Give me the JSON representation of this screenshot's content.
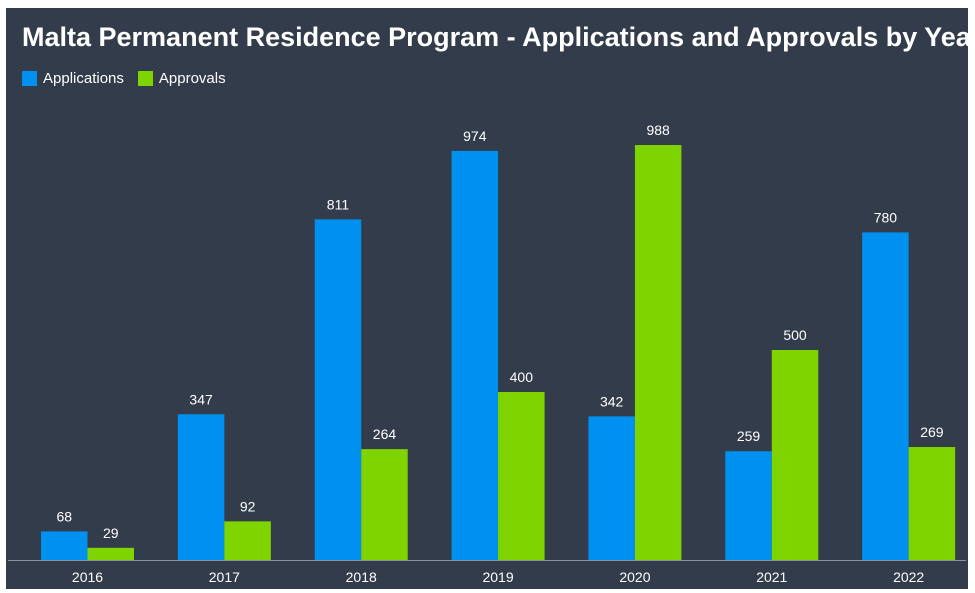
{
  "colors": {
    "background": "#323c4b",
    "applications": "#0090f0",
    "approvals": "#7fd400",
    "text": "#ffffff",
    "axis": "#8a949f"
  },
  "chart_data": {
    "type": "bar",
    "title": "Malta Permanent Residence Program - Applications and Approvals by Year",
    "xlabel": "",
    "ylabel": "",
    "ylim": [
      0,
      1000
    ],
    "grid": false,
    "legend_position": "top-left",
    "categories": [
      "2016",
      "2017",
      "2018",
      "2019",
      "2020",
      "2021",
      "2022"
    ],
    "series": [
      {
        "name": "Applications",
        "values": [
          68,
          347,
          811,
          974,
          342,
          259,
          780
        ]
      },
      {
        "name": "Approvals",
        "values": [
          29,
          92,
          264,
          400,
          988,
          500,
          269
        ]
      }
    ]
  }
}
